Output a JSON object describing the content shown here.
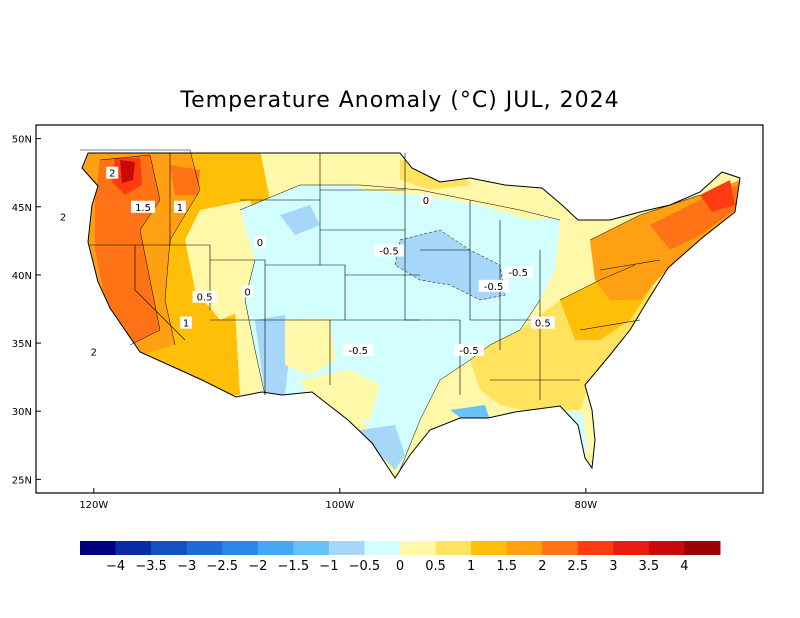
{
  "title": "Temperature Anomaly (°C) JUL, 2024",
  "map": {
    "extent": {
      "lon_min": -124.7,
      "lon_max": -65.6,
      "lat_min": 24.0,
      "lat_max": 51.0
    },
    "lat_ticks": [
      {
        "lat": 50,
        "label": "50N"
      },
      {
        "lat": 45,
        "label": "45N"
      },
      {
        "lat": 40,
        "label": "40N"
      },
      {
        "lat": 35,
        "label": "35N"
      },
      {
        "lat": 30,
        "label": "30N"
      },
      {
        "lat": 25,
        "label": "25N"
      }
    ],
    "lon_ticks": [
      {
        "lon": -120,
        "label": "120W"
      },
      {
        "lon": -100,
        "label": "100W"
      },
      {
        "lon": -80,
        "label": "80W"
      }
    ],
    "contour_labels": [
      {
        "text": "2",
        "lon": -118.5,
        "lat": 47.5
      },
      {
        "text": "1.5",
        "lon": -116.0,
        "lat": 45.0
      },
      {
        "text": "1",
        "lon": -113.0,
        "lat": 45.0
      },
      {
        "text": "2",
        "lon": -122.5,
        "lat": 44.3
      },
      {
        "text": "0",
        "lon": -106.5,
        "lat": 42.4
      },
      {
        "text": "0",
        "lon": -93.0,
        "lat": 45.5
      },
      {
        "text": "-0.5",
        "lon": -96.0,
        "lat": 41.8
      },
      {
        "text": "-0.5",
        "lon": -85.5,
        "lat": 40.2
      },
      {
        "text": "-0.5",
        "lon": -87.5,
        "lat": 39.2
      },
      {
        "text": "0.5",
        "lon": -111.0,
        "lat": 38.4
      },
      {
        "text": "0",
        "lon": -107.5,
        "lat": 38.8
      },
      {
        "text": "1",
        "lon": -112.5,
        "lat": 36.5
      },
      {
        "text": "2",
        "lon": -120.0,
        "lat": 34.4
      },
      {
        "text": "-0.5",
        "lon": -98.5,
        "lat": 34.5
      },
      {
        "text": "-0.5",
        "lon": -89.5,
        "lat": 34.5
      },
      {
        "text": "0.5",
        "lon": -83.5,
        "lat": 36.5
      }
    ]
  },
  "colorbar": {
    "colors": [
      "#000080",
      "#0a2ca8",
      "#1450c0",
      "#1e6ad8",
      "#2a86e8",
      "#45a6f4",
      "#68c2fa",
      "#a6d6f8",
      "#d2fffe",
      "#fff8a8",
      "#ffe35e",
      "#ffbe08",
      "#ffa012",
      "#ff7216",
      "#ff3c10",
      "#e81c12",
      "#c80a0a",
      "#960404"
    ],
    "tick_labels": [
      "−4",
      "−3.5",
      "−3",
      "−2.5",
      "−2",
      "−1.5",
      "−1",
      "−0.5",
      "0",
      "0.5",
      "1",
      "1.5",
      "2",
      "2.5",
      "3",
      "3.5",
      "4"
    ]
  }
}
